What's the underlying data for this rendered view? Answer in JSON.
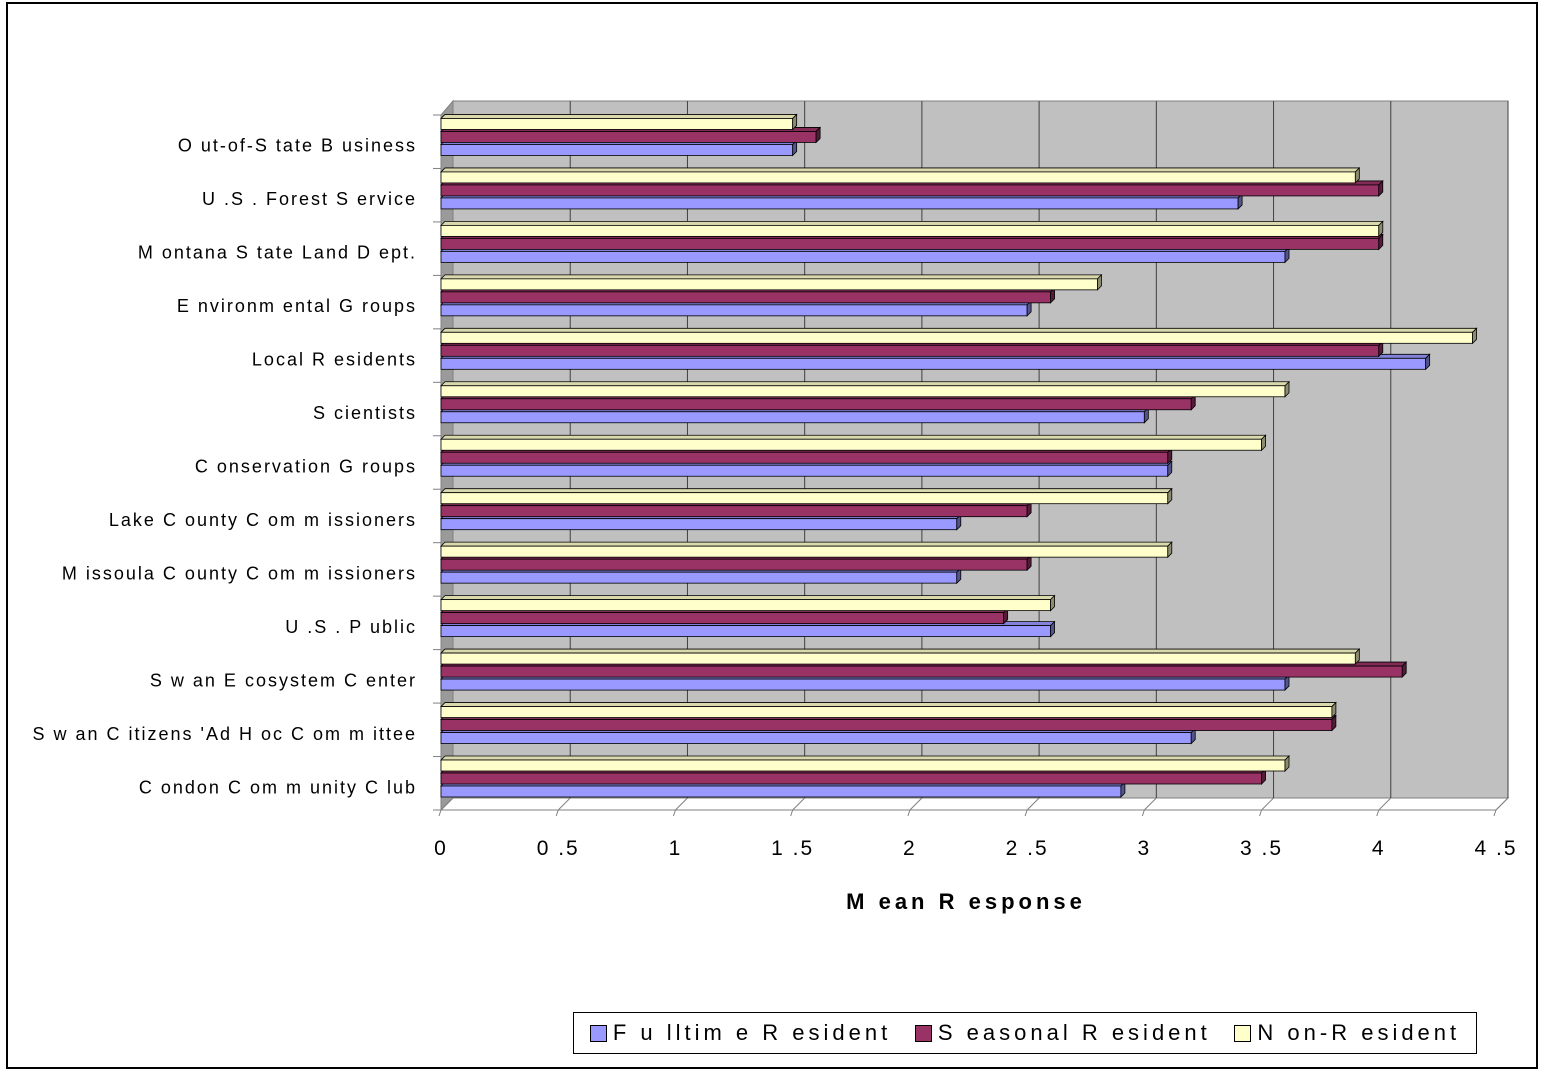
{
  "chart_data": {
    "type": "bar",
    "orientation": "horizontal",
    "style": "3d",
    "categories": [
      "Condon Community Club",
      "Swan Citizens' Ad Hoc Committee",
      "Swan Ecosystem Center",
      "U.S. Public",
      "Missoula County Commissioners",
      "Lake County Commissioners",
      "Conservation Groups",
      "Scientists",
      "Local Residents",
      "Environmental Groups",
      "Montana State Land Dept.",
      "U.S. Forest Service",
      "Out-of-State Business"
    ],
    "category_labels": [
      "C ondon C om m unity C lub",
      "S w an C itizens 'Ad H oc C om m ittee",
      "S w an E cosystem  C enter",
      "U .S . P ublic",
      "M issoula C ounty C om m issioners",
      "Lake C ounty C om m issioners",
      "C onservation G roups",
      "S cientists",
      "Local R esidents",
      "E nvironm ental G roups",
      "M ontana S tate Land D ept.",
      "U .S . Forest S ervice",
      "O ut-of-S tate B usiness"
    ],
    "series": [
      {
        "name": "Fulltime Resident",
        "color": "#9999ff",
        "values": [
          2.9,
          3.2,
          3.6,
          2.6,
          2.2,
          2.2,
          3.1,
          3.0,
          4.2,
          2.5,
          3.6,
          3.4,
          1.5
        ]
      },
      {
        "name": "Seasonal Resident",
        "color": "#993366",
        "values": [
          3.5,
          3.8,
          4.1,
          2.4,
          2.5,
          2.5,
          3.1,
          3.2,
          4.0,
          2.6,
          4.0,
          4.0,
          1.6
        ]
      },
      {
        "name": "Non-Resident",
        "color": "#ffffcc",
        "values": [
          3.6,
          3.8,
          3.9,
          2.6,
          3.1,
          3.1,
          3.5,
          3.6,
          4.4,
          2.8,
          4.0,
          3.9,
          1.5
        ]
      }
    ],
    "xlabel": "M ean R esponse",
    "ylabel": "",
    "xlim": [
      0,
      4.5
    ],
    "xticks": [
      "0",
      "0 .5",
      "1",
      "1 .5",
      "2",
      "2 .5",
      "3",
      "3 .5",
      "4",
      "4 .5"
    ],
    "grid": true,
    "legend_position": "bottom",
    "legend_labels": [
      "F u lltim e  R esident",
      "S easonal R esident",
      "N on-R esident"
    ],
    "wall_color": "#c0c0c0"
  }
}
